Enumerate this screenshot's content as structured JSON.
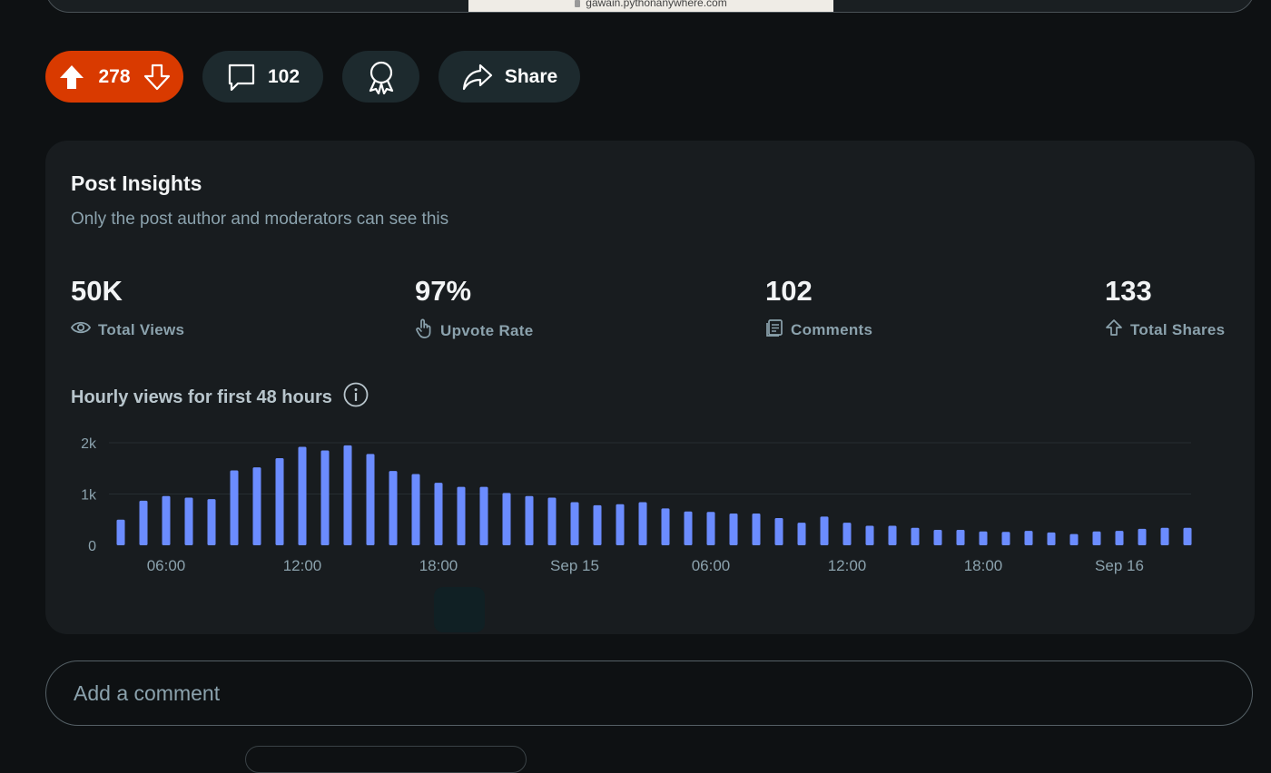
{
  "browser": {
    "url": "gawain.pythonanywhere.com"
  },
  "actions": {
    "score": "278",
    "comment_count": "102",
    "share_label": "Share"
  },
  "insights": {
    "title": "Post Insights",
    "subtitle": "Only the post author and moderators can see this",
    "stats": [
      {
        "value": "50K",
        "label": "Total Views",
        "icon": "eye-icon"
      },
      {
        "value": "97%",
        "label": "Upvote Rate",
        "icon": "hand-pointer-icon"
      },
      {
        "value": "102",
        "label": "Comments",
        "icon": "document-icon"
      },
      {
        "value": "133",
        "label": "Total Shares",
        "icon": "share-arrow-icon"
      }
    ],
    "chart_title": "Hourly views for first 48 hours"
  },
  "chart_data": {
    "type": "bar",
    "title": "Hourly views for first 48 hours",
    "xlabel": "",
    "ylabel": "",
    "ylim": [
      0,
      2000
    ],
    "yticks": [
      0,
      1000,
      2000
    ],
    "ytick_labels": [
      "0",
      "1k",
      "2k"
    ],
    "xtick_labels": [
      "06:00",
      "12:00",
      "18:00",
      "Sep 15",
      "06:00",
      "12:00",
      "18:00",
      "Sep 16"
    ],
    "xtick_positions": [
      2,
      8,
      14,
      20,
      26,
      32,
      38,
      44
    ],
    "values": [
      500,
      870,
      960,
      930,
      900,
      1460,
      1520,
      1700,
      1920,
      1850,
      1950,
      1780,
      1450,
      1390,
      1220,
      1140,
      1140,
      1020,
      960,
      930,
      840,
      780,
      800,
      840,
      720,
      660,
      650,
      620,
      620,
      530,
      440,
      560,
      440,
      380,
      380,
      340,
      300,
      300,
      270,
      260,
      280,
      250,
      220,
      270,
      280,
      320,
      340,
      340
    ],
    "bar_color": "#6b8cff",
    "grid": true
  },
  "comment_input": {
    "placeholder": "Add a comment"
  }
}
